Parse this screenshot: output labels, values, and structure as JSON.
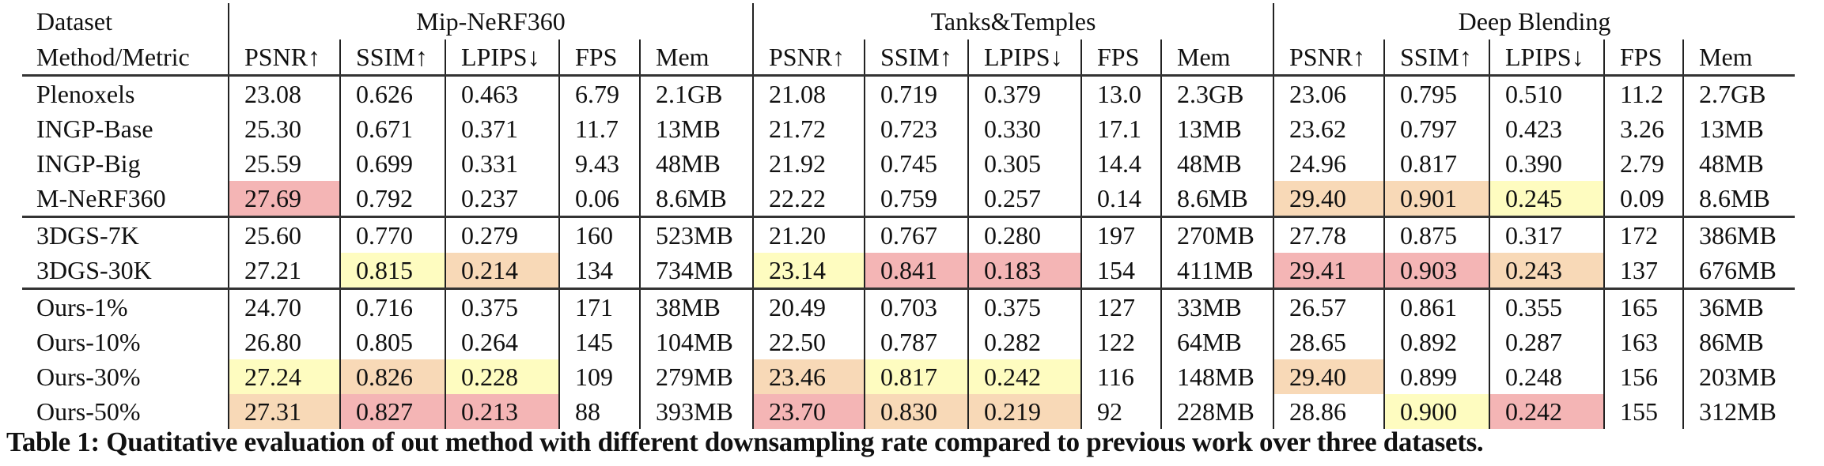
{
  "colors": {
    "first": "#f4b5b5",
    "second": "#f8d9b7",
    "third": "#fefcc0"
  },
  "header": {
    "dataset_label": "Dataset",
    "method_label": "Method/Metric",
    "datasets": [
      "Mip-NeRF360",
      "Tanks&Temples",
      "Deep Blending"
    ],
    "metrics": [
      "PSNR↑",
      "SSIM↑",
      "LPIPS↓",
      "FPS",
      "Mem"
    ]
  },
  "groups": [
    {
      "rows": [
        {
          "method": "Plenoxels",
          "values": [
            "23.08",
            "0.626",
            "0.463",
            "6.79",
            "2.1GB",
            "21.08",
            "0.719",
            "0.379",
            "13.0",
            "2.3GB",
            "23.06",
            "0.795",
            "0.510",
            "11.2",
            "2.7GB"
          ],
          "highlight": [
            "",
            "",
            "",
            "",
            "",
            "",
            "",
            "",
            "",
            "",
            "",
            "",
            "",
            "",
            ""
          ]
        },
        {
          "method": "INGP-Base",
          "values": [
            "25.30",
            "0.671",
            "0.371",
            "11.7",
            "13MB",
            "21.72",
            "0.723",
            "0.330",
            "17.1",
            "13MB",
            "23.62",
            "0.797",
            "0.423",
            "3.26",
            "13MB"
          ],
          "highlight": [
            "",
            "",
            "",
            "",
            "",
            "",
            "",
            "",
            "",
            "",
            "",
            "",
            "",
            "",
            ""
          ]
        },
        {
          "method": "INGP-Big",
          "values": [
            "25.59",
            "0.699",
            "0.331",
            "9.43",
            "48MB",
            "21.92",
            "0.745",
            "0.305",
            "14.4",
            "48MB",
            "24.96",
            "0.817",
            "0.390",
            "2.79",
            "48MB"
          ],
          "highlight": [
            "",
            "",
            "",
            "",
            "",
            "",
            "",
            "",
            "",
            "",
            "",
            "",
            "",
            "",
            ""
          ]
        },
        {
          "method": "M-NeRF360",
          "values": [
            "27.69",
            "0.792",
            "0.237",
            "0.06",
            "8.6MB",
            "22.22",
            "0.759",
            "0.257",
            "0.14",
            "8.6MB",
            "29.40",
            "0.901",
            "0.245",
            "0.09",
            "8.6MB"
          ],
          "highlight": [
            "r",
            "",
            "",
            "",
            "",
            "",
            "",
            "",
            "",
            "",
            "o",
            "o",
            "y",
            "",
            ""
          ]
        }
      ]
    },
    {
      "rows": [
        {
          "method": "3DGS-7K",
          "values": [
            "25.60",
            "0.770",
            "0.279",
            "160",
            "523MB",
            "21.20",
            "0.767",
            "0.280",
            "197",
            "270MB",
            "27.78",
            "0.875",
            "0.317",
            "172",
            "386MB"
          ],
          "highlight": [
            "",
            "",
            "",
            "",
            "",
            "",
            "",
            "",
            "",
            "",
            "",
            "",
            "",
            "",
            ""
          ]
        },
        {
          "method": "3DGS-30K",
          "values": [
            "27.21",
            "0.815",
            "0.214",
            "134",
            "734MB",
            "23.14",
            "0.841",
            "0.183",
            "154",
            "411MB",
            "29.41",
            "0.903",
            "0.243",
            "137",
            "676MB"
          ],
          "highlight": [
            "",
            "y",
            "o",
            "",
            "",
            "y",
            "r",
            "r",
            "",
            "",
            "r",
            "r",
            "o",
            "",
            ""
          ]
        }
      ]
    },
    {
      "rows": [
        {
          "method": "Ours-1%",
          "values": [
            "24.70",
            "0.716",
            "0.375",
            "171",
            "38MB",
            "20.49",
            "0.703",
            "0.375",
            "127",
            "33MB",
            "26.57",
            "0.861",
            "0.355",
            "165",
            "36MB"
          ],
          "highlight": [
            "",
            "",
            "",
            "",
            "",
            "",
            "",
            "",
            "",
            "",
            "",
            "",
            "",
            "",
            ""
          ]
        },
        {
          "method": "Ours-10%",
          "values": [
            "26.80",
            "0.805",
            "0.264",
            "145",
            "104MB",
            "22.50",
            "0.787",
            "0.282",
            "122",
            "64MB",
            "28.65",
            "0.892",
            "0.287",
            "163",
            "86MB"
          ],
          "highlight": [
            "",
            "",
            "",
            "",
            "",
            "",
            "",
            "",
            "",
            "",
            "",
            "",
            "",
            "",
            ""
          ]
        },
        {
          "method": "Ours-30%",
          "values": [
            "27.24",
            "0.826",
            "0.228",
            "109",
            "279MB",
            "23.46",
            "0.817",
            "0.242",
            "116",
            "148MB",
            "29.40",
            "0.899",
            "0.248",
            "156",
            "203MB"
          ],
          "highlight": [
            "y",
            "o",
            "y",
            "",
            "",
            "o",
            "y",
            "y",
            "",
            "",
            "o",
            "",
            "",
            "",
            ""
          ]
        },
        {
          "method": "Ours-50%",
          "values": [
            "27.31",
            "0.827",
            "0.213",
            "88",
            "393MB",
            "23.70",
            "0.830",
            "0.219",
            "92",
            "228MB",
            "28.86",
            "0.900",
            "0.242",
            "155",
            "312MB"
          ],
          "highlight": [
            "o",
            "r",
            "r",
            "",
            "",
            "r",
            "o",
            "o",
            "",
            "",
            "",
            "y",
            "r",
            "",
            ""
          ]
        }
      ]
    }
  ],
  "caption": "Table 1: Quatitative evaluation of out method with different downsampling rate compared to previous work over three datasets."
}
